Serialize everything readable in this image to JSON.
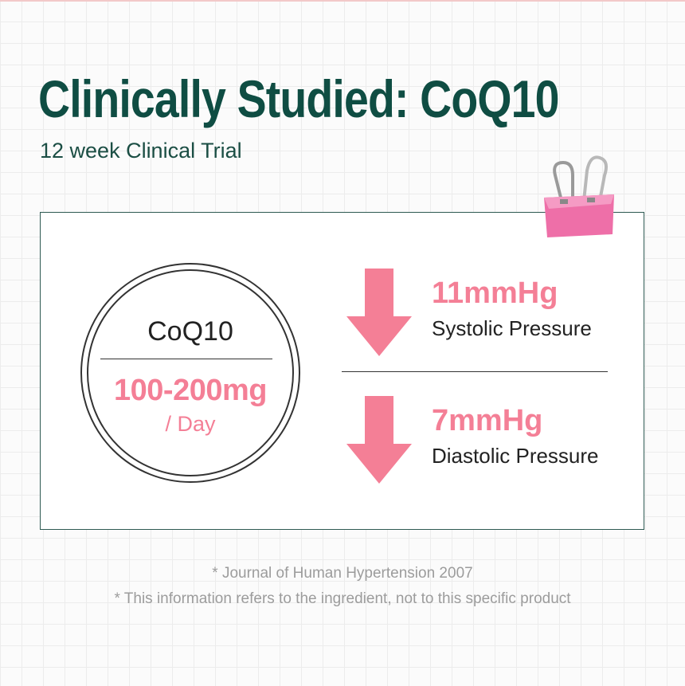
{
  "header": {
    "title": "Clinically Studied: CoQ10",
    "subtitle": "12 week Clinical Trial"
  },
  "dose": {
    "name": "CoQ10",
    "amount": "100-200mg",
    "per": "/ Day"
  },
  "results": [
    {
      "value": "11mmHg",
      "label": "Systolic Pressure",
      "direction": "down"
    },
    {
      "value": "7mmHg",
      "label": "Diastolic Pressure",
      "direction": "down"
    }
  ],
  "footnotes": [
    "* Journal of Human Hypertension 2007",
    "* This information refers to the ingredient, not to this specific product"
  ],
  "colors": {
    "title": "#0f4d43",
    "accent": "#f47f96",
    "clip": "#ee6fa8"
  },
  "icons": [
    "arrow-down-icon",
    "binder-clip-icon"
  ]
}
